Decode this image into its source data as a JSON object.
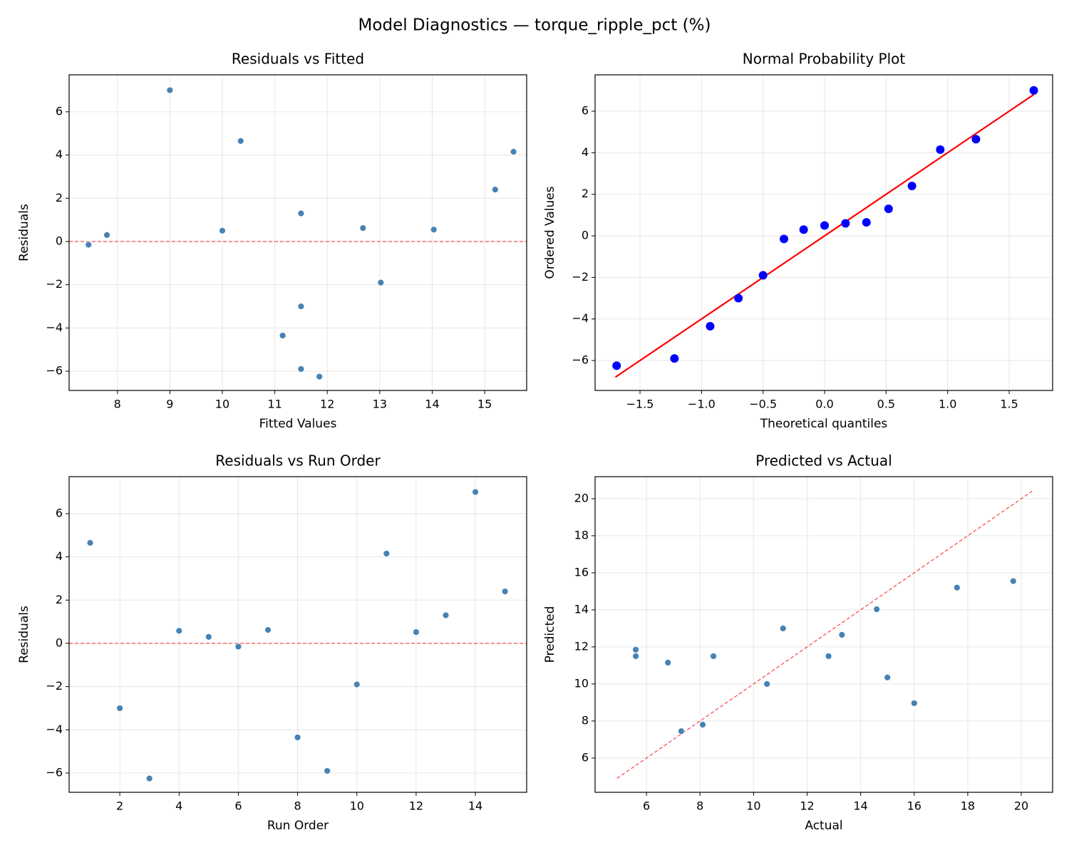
{
  "title": "Model Diagnostics — torque_ripple_pct (%)",
  "chart_data": [
    {
      "type": "scatter",
      "title": "Residuals vs Fitted",
      "x_label": "Fitted Values",
      "y_label": "Residuals",
      "x": [
        7.45,
        7.8,
        9.0,
        10.0,
        10.35,
        11.15,
        11.5,
        11.5,
        11.5,
        11.85,
        12.68,
        13.02,
        14.03,
        15.2,
        15.55
      ],
      "y": [
        -0.15,
        0.3,
        7.0,
        0.5,
        4.65,
        -4.35,
        1.3,
        -3.0,
        -5.9,
        -6.25,
        0.62,
        -1.9,
        0.55,
        2.4,
        4.15
      ],
      "color": "#4682b4",
      "grid": true,
      "xlim": [
        7.08,
        15.8
      ],
      "xticks": [
        8,
        9,
        10,
        11,
        12,
        13,
        14,
        15
      ],
      "ylim": [
        -6.89,
        7.71
      ],
      "yticks": [
        {
          "value": -6,
          "label": "−6"
        },
        {
          "value": -4,
          "label": "−4"
        },
        {
          "value": -2,
          "label": "−2"
        },
        0,
        2,
        4,
        6
      ],
      "hline": 0,
      "ref_color": "#ff0000"
    },
    {
      "type": "scatter",
      "title": "Normal Probability Plot",
      "x_label": "Theoretical quantiles",
      "y_label": "Ordered Values",
      "x": [
        -1.69,
        -1.22,
        -0.93,
        -0.7,
        -0.5,
        -0.33,
        -0.17,
        0.0,
        0.17,
        0.34,
        0.52,
        0.71,
        0.94,
        1.23,
        1.7
      ],
      "y": [
        -6.25,
        -5.9,
        -4.35,
        -3.0,
        -1.9,
        -0.15,
        0.3,
        0.5,
        0.6,
        0.65,
        1.3,
        2.4,
        4.15,
        4.65,
        7.0
      ],
      "color": "#0000ff",
      "grid": true,
      "marker_size": 6,
      "xlim": [
        -1.865,
        1.853
      ],
      "xticks": [
        {
          "value": -1.5,
          "label": "−1.5"
        },
        {
          "value": -1.0,
          "label": "−1.0"
        },
        {
          "value": -0.5,
          "label": "−0.5"
        },
        {
          "value": 0,
          "label": "0.0"
        },
        0.5,
        {
          "value": 1,
          "label": "1.0"
        },
        1.5
      ],
      "ylim": [
        -7.44,
        7.75
      ],
      "yticks": [
        {
          "value": -6,
          "label": "−6"
        },
        {
          "value": -4,
          "label": "−4"
        },
        {
          "value": -2,
          "label": "−2"
        },
        0,
        2,
        4,
        6
      ],
      "fit_line": {
        "x": [
          -1.7,
          1.7
        ],
        "y": [
          -6.8,
          6.8
        ],
        "color": "#ff0000"
      }
    },
    {
      "type": "scatter",
      "title": "Residuals vs Run Order",
      "x_label": "Run Order",
      "y_label": "Residuals",
      "x": [
        1,
        2,
        3,
        4,
        5,
        6,
        7,
        8,
        9,
        10,
        11,
        12,
        13,
        14,
        15
      ],
      "y": [
        4.65,
        -3.0,
        -6.25,
        0.58,
        0.3,
        -0.15,
        0.62,
        -4.35,
        -5.9,
        -1.9,
        4.15,
        0.52,
        1.3,
        7.0,
        2.4
      ],
      "color": "#4682b4",
      "grid": true,
      "xlim": [
        0.29,
        15.73
      ],
      "xticks": [
        2,
        4,
        6,
        8,
        10,
        12,
        14
      ],
      "ylim": [
        -6.89,
        7.71
      ],
      "yticks": [
        {
          "value": -6,
          "label": "−6"
        },
        {
          "value": -4,
          "label": "−4"
        },
        {
          "value": -2,
          "label": "−2"
        },
        0,
        2,
        4,
        6
      ],
      "hline": 0,
      "ref_color": "#ff0000"
    },
    {
      "type": "scatter",
      "title": "Predicted vs Actual",
      "x_label": "Actual",
      "y_label": "Predicted",
      "x": [
        5.6,
        5.6,
        6.8,
        7.3,
        8.1,
        8.5,
        10.5,
        11.1,
        12.8,
        13.3,
        14.6,
        15.0,
        16.0,
        17.6,
        19.7
      ],
      "y": [
        11.85,
        11.5,
        11.15,
        7.45,
        7.8,
        11.5,
        10.0,
        13.0,
        11.5,
        12.65,
        14.03,
        10.35,
        8.96,
        15.2,
        15.55
      ],
      "color": "#4682b4",
      "grid": true,
      "xlim": [
        4.08,
        21.17
      ],
      "xticks": [
        6,
        8,
        10,
        12,
        14,
        16,
        18,
        20
      ],
      "ylim": [
        4.15,
        21.19
      ],
      "yticks": [
        6,
        8,
        10,
        12,
        14,
        16,
        18,
        20
      ],
      "ref_line": {
        "x": [
          4.9,
          20.4
        ],
        "y": [
          4.9,
          20.4
        ],
        "color": "#ff0000"
      }
    }
  ]
}
